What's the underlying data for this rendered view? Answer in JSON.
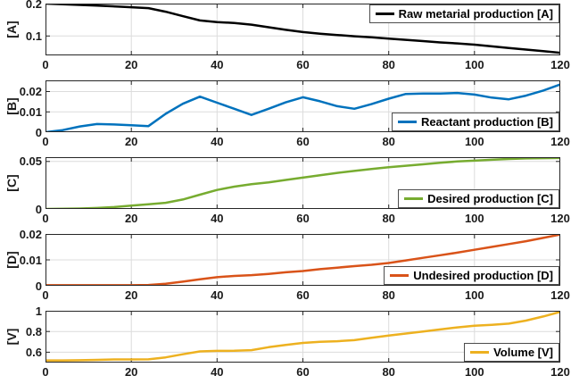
{
  "figure": {
    "background": "#ffffff",
    "grid_color": "#dcdcdc",
    "axis_color": "#262626"
  },
  "chart_data": [
    {
      "type": "line",
      "ylabel": "[A]",
      "legend": "Raw metarial production [A]",
      "legend_pos": "top-right",
      "color": "#000000",
      "xlim": [
        0,
        120
      ],
      "ylim": [
        0.04,
        0.2
      ],
      "xticks": [
        0,
        20,
        40,
        60,
        80,
        100,
        120
      ],
      "xtick_labels": [
        "0",
        "20",
        "40",
        "60",
        "80",
        "100",
        "120"
      ],
      "yticks": [
        0.1,
        0.2
      ],
      "ytick_labels": [
        "0.1",
        "0.2"
      ],
      "x": [
        0,
        6,
        12,
        18,
        24,
        28,
        32,
        36,
        40,
        44,
        48,
        52,
        56,
        60,
        64,
        68,
        72,
        76,
        80,
        84,
        88,
        92,
        96,
        100,
        104,
        108,
        112,
        116,
        120
      ],
      "values": [
        0.2,
        0.197,
        0.194,
        0.19,
        0.186,
        0.175,
        0.161,
        0.148,
        0.143,
        0.14,
        0.135,
        0.127,
        0.119,
        0.112,
        0.107,
        0.103,
        0.099,
        0.096,
        0.092,
        0.088,
        0.084,
        0.08,
        0.077,
        0.073,
        0.068,
        0.063,
        0.058,
        0.053,
        0.048
      ]
    },
    {
      "type": "line",
      "ylabel": "[B]",
      "legend": "Reactant production [B]",
      "legend_pos": "bottom-right",
      "color": "#0072BD",
      "xlim": [
        0,
        120
      ],
      "ylim": [
        0,
        0.0255
      ],
      "xticks": [
        0,
        20,
        40,
        60,
        80,
        100,
        120
      ],
      "xtick_labels": [
        "0",
        "20",
        "40",
        "60",
        "80",
        "100",
        "120"
      ],
      "yticks": [
        0,
        0.01,
        0.02
      ],
      "ytick_labels": [
        "0",
        "0.01",
        "0.02"
      ],
      "x": [
        0,
        4,
        8,
        12,
        16,
        20,
        24,
        28,
        32,
        36,
        40,
        44,
        48,
        52,
        56,
        60,
        64,
        68,
        72,
        76,
        80,
        84,
        88,
        92,
        96,
        100,
        104,
        108,
        112,
        116,
        120
      ],
      "values": [
        0,
        0.001,
        0.0028,
        0.004,
        0.0038,
        0.0034,
        0.003,
        0.009,
        0.014,
        0.0175,
        0.0145,
        0.0115,
        0.0085,
        0.0115,
        0.0147,
        0.0172,
        0.0152,
        0.0128,
        0.0115,
        0.0138,
        0.0165,
        0.0188,
        0.019,
        0.019,
        0.0193,
        0.0185,
        0.017,
        0.0162,
        0.018,
        0.0205,
        0.0235
      ]
    },
    {
      "type": "line",
      "ylabel": "[C]",
      "legend": "Desired production [C]",
      "legend_pos": "bottom-right",
      "color": "#77AC30",
      "xlim": [
        0,
        120
      ],
      "ylim": [
        0,
        0.0545
      ],
      "xticks": [
        0,
        20,
        40,
        60,
        80,
        100,
        120
      ],
      "xtick_labels": [
        "0",
        "20",
        "40",
        "60",
        "80",
        "100",
        "120"
      ],
      "yticks": [
        0,
        0.05
      ],
      "ytick_labels": [
        "0",
        "0.05"
      ],
      "x": [
        0,
        4,
        8,
        12,
        16,
        20,
        24,
        28,
        32,
        36,
        40,
        44,
        48,
        52,
        56,
        60,
        64,
        68,
        72,
        76,
        80,
        84,
        88,
        92,
        96,
        100,
        104,
        108,
        112,
        116,
        120
      ],
      "values": [
        0,
        0.0002,
        0.0005,
        0.001,
        0.002,
        0.0035,
        0.005,
        0.0065,
        0.01,
        0.015,
        0.02,
        0.0235,
        0.026,
        0.028,
        0.0305,
        0.033,
        0.0355,
        0.038,
        0.04,
        0.042,
        0.044,
        0.0455,
        0.047,
        0.0487,
        0.05,
        0.0508,
        0.0518,
        0.0526,
        0.0532,
        0.0535,
        0.0537
      ]
    },
    {
      "type": "line",
      "ylabel": "[D]",
      "legend": "Undesired production [D]",
      "legend_pos": "bottom-right",
      "color": "#D95319",
      "xlim": [
        0,
        120
      ],
      "ylim": [
        0,
        0.02
      ],
      "xticks": [
        0,
        20,
        40,
        60,
        80,
        100,
        120
      ],
      "xtick_labels": [
        "0",
        "20",
        "40",
        "60",
        "80",
        "100",
        "120"
      ],
      "yticks": [
        0,
        0.01,
        0.02
      ],
      "ytick_labels": [
        "0",
        "0.01",
        "0.02"
      ],
      "x": [
        0,
        4,
        8,
        12,
        16,
        20,
        24,
        28,
        32,
        36,
        40,
        44,
        48,
        52,
        56,
        60,
        64,
        68,
        72,
        76,
        80,
        84,
        88,
        92,
        96,
        100,
        104,
        108,
        112,
        116,
        120
      ],
      "values": [
        0.0002,
        0.0002,
        0.0002,
        0.0002,
        0.0002,
        0.0002,
        0.0003,
        0.0008,
        0.0016,
        0.0025,
        0.0033,
        0.0038,
        0.0041,
        0.0046,
        0.0052,
        0.0057,
        0.0064,
        0.007,
        0.0076,
        0.0081,
        0.0088,
        0.0098,
        0.0108,
        0.0118,
        0.0128,
        0.0139,
        0.015,
        0.0161,
        0.0172,
        0.0185,
        0.0198
      ]
    },
    {
      "type": "line",
      "ylabel": "[V]",
      "legend": "Volume [V]",
      "legend_pos": "bottom-right",
      "color": "#EDB120",
      "xlim": [
        0,
        120
      ],
      "ylim": [
        0.5,
        1
      ],
      "xticks": [
        0,
        20,
        40,
        60,
        80,
        100,
        120
      ],
      "xtick_labels": [
        "0",
        "20",
        "40",
        "60",
        "80",
        "100",
        "120"
      ],
      "yticks": [
        0.6,
        0.8,
        1
      ],
      "ytick_labels": [
        "0.6",
        "0.8",
        "1"
      ],
      "x": [
        0,
        4,
        8,
        12,
        16,
        20,
        24,
        28,
        32,
        36,
        40,
        44,
        48,
        52,
        56,
        60,
        64,
        68,
        72,
        76,
        80,
        84,
        88,
        92,
        96,
        100,
        104,
        108,
        112,
        116,
        120
      ],
      "values": [
        0.521,
        0.521,
        0.522,
        0.526,
        0.53,
        0.53,
        0.531,
        0.55,
        0.58,
        0.608,
        0.613,
        0.614,
        0.62,
        0.648,
        0.67,
        0.69,
        0.7,
        0.706,
        0.716,
        0.74,
        0.76,
        0.78,
        0.8,
        0.82,
        0.84,
        0.855,
        0.865,
        0.876,
        0.905,
        0.945,
        0.99
      ]
    }
  ]
}
